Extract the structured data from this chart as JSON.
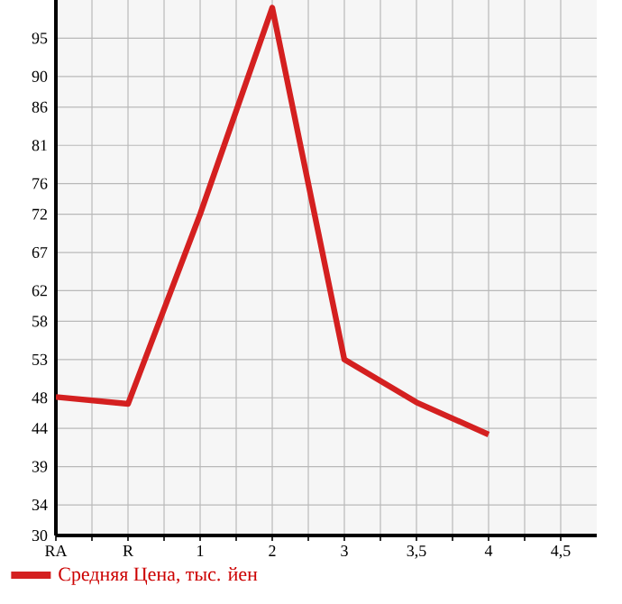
{
  "chart_data": {
    "type": "line",
    "categories": [
      "RA",
      "R",
      "1",
      "2",
      "3",
      "3,5",
      "4",
      "4,5"
    ],
    "series": [
      {
        "name": "Средняя Цена, тыс. йен",
        "color": "#d42020",
        "values": [
          48.1,
          47.2,
          72,
          99,
          53,
          47.4,
          43.2,
          null
        ]
      }
    ],
    "ylim": [
      30,
      100
    ],
    "yticks": [
      30,
      34,
      39,
      44,
      48,
      53,
      58,
      62,
      67,
      72,
      76,
      81,
      86,
      90,
      95
    ],
    "grid": true,
    "legend": "bottom",
    "marker": "none",
    "line_style": "solid"
  }
}
